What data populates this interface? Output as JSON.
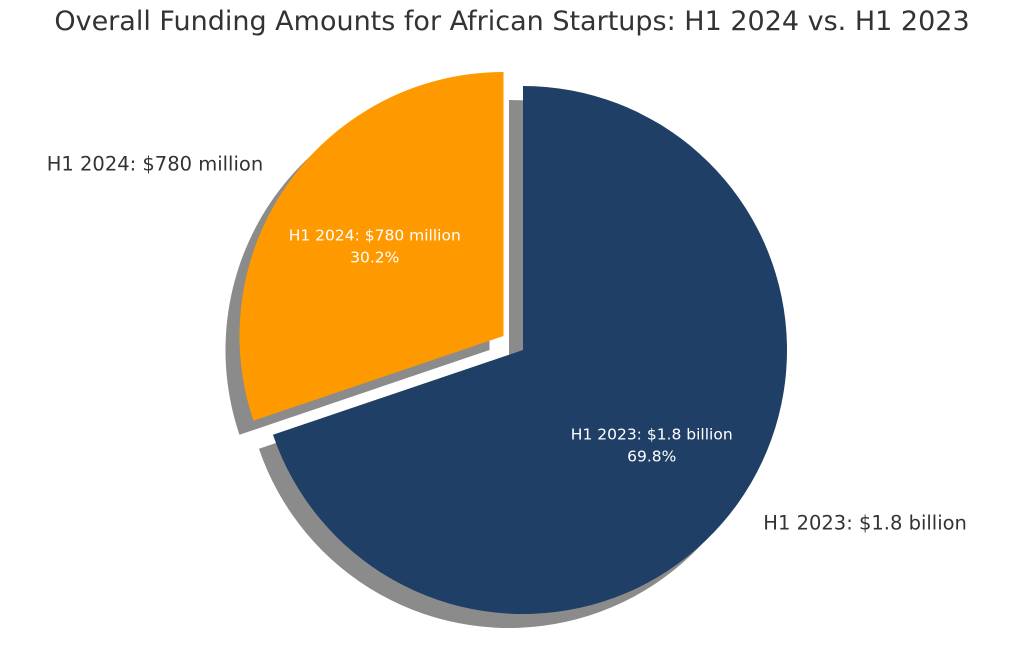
{
  "chart_data": {
    "type": "pie",
    "title": "Overall Funding Amounts for African Startups: H1 2024 vs. H1 2023",
    "slices": [
      {
        "label": "H1 2024: $780 million",
        "value_label": "H1 2024: $780 million",
        "value": 780,
        "percent": 30.2,
        "percent_label": "30.2%",
        "color": "#FF9900",
        "exploded": true
      },
      {
        "label": "H1 2023: $1.8 billion",
        "value_label": "H1 2023: $1.8 billion",
        "value": 1800,
        "percent": 69.8,
        "percent_label": "69.8%",
        "color": "#1F3F66",
        "exploded": false
      }
    ],
    "start_angle_deg": 90,
    "direction": "counterclockwise",
    "shadow": true,
    "legend": "none"
  }
}
